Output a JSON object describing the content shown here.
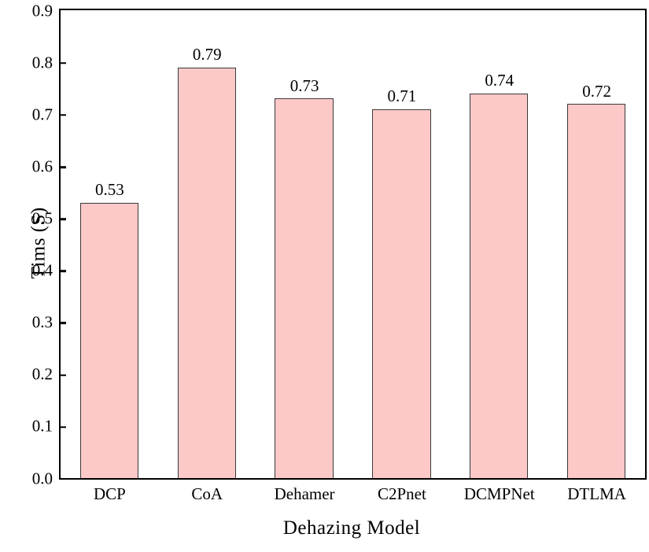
{
  "chart_data": {
    "type": "bar",
    "categories": [
      "DCP",
      "CoA",
      "Dehamer",
      "C2Pnet",
      "DCMPNet",
      "DTLMA"
    ],
    "values": [
      0.53,
      0.79,
      0.73,
      0.71,
      0.74,
      0.72
    ],
    "bar_labels": [
      "0.53",
      "0.79",
      "0.73",
      "0.71",
      "0.74",
      "0.72"
    ],
    "title": "",
    "xlabel": "Dehazing Model",
    "ylabel": "Tims (S)",
    "ylim": [
      0.0,
      0.9
    ],
    "yticks": [
      "0.0",
      "0.1",
      "0.2",
      "0.3",
      "0.4",
      "0.5",
      "0.6",
      "0.7",
      "0.8",
      "0.9"
    ],
    "grid": false,
    "legend": "none",
    "colors": {
      "bar_fill": "#fcc8c8",
      "bar_edge": "#3a3a3a",
      "axis": "#000000",
      "text": "#000000",
      "background": "#ffffff"
    }
  }
}
